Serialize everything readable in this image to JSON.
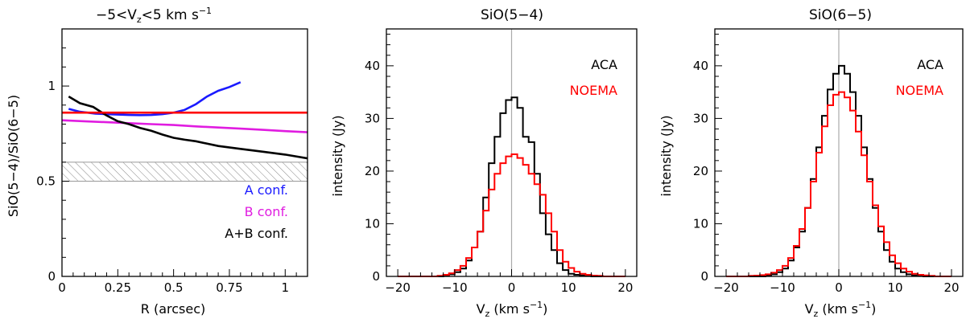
{
  "chart_data": [
    {
      "type": "line",
      "title": "−5<V",
      "title_sub": "z",
      "title_tail": "<5 km s",
      "title_sup": "−1",
      "xlabel": "R (arcsec)",
      "ylabel": "SiO(5−4)/SiO(6−5)",
      "xlim": [
        0,
        1.1
      ],
      "ylim": [
        0,
        1.3
      ],
      "xticks": [
        0,
        0.25,
        0.5,
        0.75,
        1
      ],
      "xtick_labels": [
        "0",
        "0.25",
        "0.5",
        "0.75",
        "1"
      ],
      "yticks": [
        0,
        0.5,
        1
      ],
      "ytick_labels": [
        "0",
        "0.5",
        "1"
      ],
      "series": [
        {
          "name": "A conf.",
          "color": "#1a1aff",
          "x": [
            0.03,
            0.08,
            0.15,
            0.2,
            0.25,
            0.3,
            0.35,
            0.4,
            0.45,
            0.5,
            0.55,
            0.6,
            0.65,
            0.7,
            0.75,
            0.8
          ],
          "y": [
            0.88,
            0.865,
            0.855,
            0.852,
            0.85,
            0.848,
            0.847,
            0.848,
            0.852,
            0.86,
            0.875,
            0.905,
            0.945,
            0.975,
            0.995,
            1.02
          ]
        },
        {
          "name": "B conf.",
          "color": "#e01ce0",
          "x": [
            0.0,
            0.1,
            0.2,
            0.3,
            0.4,
            0.5,
            0.6,
            0.7,
            0.8,
            0.9,
            1.0,
            1.1
          ],
          "y": [
            0.82,
            0.815,
            0.81,
            0.805,
            0.8,
            0.795,
            0.788,
            0.782,
            0.776,
            0.77,
            0.763,
            0.757
          ]
        },
        {
          "name": "A+B conf.",
          "color": "#000000",
          "x": [
            0.03,
            0.08,
            0.14,
            0.2,
            0.25,
            0.3,
            0.35,
            0.4,
            0.45,
            0.5,
            0.55,
            0.6,
            0.7,
            0.8,
            0.9,
            1.0,
            1.1
          ],
          "y": [
            0.945,
            0.91,
            0.89,
            0.845,
            0.815,
            0.8,
            0.78,
            0.765,
            0.745,
            0.728,
            0.718,
            0.71,
            0.685,
            0.67,
            0.655,
            0.64,
            0.62
          ]
        },
        {
          "name": "",
          "color": "#ff0000",
          "x": [
            0.0,
            1.1
          ],
          "y": [
            0.86,
            0.86
          ]
        }
      ],
      "band": {
        "y0": 0.5,
        "y1": 0.6,
        "color": "#999999"
      },
      "legend_position": "bottom-right"
    },
    {
      "type": "step",
      "title": "SiO(5−4)",
      "xlabel_main": "V",
      "xlabel_sub": "z",
      "xlabel_tail": " (km s",
      "xlabel_sup": "−1",
      "xlabel_end": ")",
      "ylabel": "intensity (Jy)",
      "xlim": [
        -22,
        22
      ],
      "ylim": [
        0,
        47
      ],
      "xticks": [
        -20,
        -10,
        0,
        10,
        20
      ],
      "xtick_labels": [
        "−20",
        "−10",
        "0",
        "10",
        "20"
      ],
      "yticks": [
        0,
        10,
        20,
        30,
        40
      ],
      "ytick_labels": [
        "0",
        "10",
        "20",
        "30",
        "40"
      ],
      "series": [
        {
          "name": "ACA",
          "color": "#000000",
          "x": [
            -20,
            -19,
            -18,
            -17,
            -16,
            -15,
            -14,
            -13,
            -12,
            -11,
            -10,
            -9,
            -8,
            -7,
            -6,
            -5,
            -4,
            -3,
            -2,
            -1,
            0,
            1,
            2,
            3,
            4,
            5,
            6,
            7,
            8,
            9,
            10,
            11,
            12,
            13,
            14,
            15,
            16,
            17,
            18,
            19
          ],
          "y": [
            0,
            0,
            0,
            0,
            0,
            0,
            0,
            0,
            0.2,
            0.4,
            0.8,
            1.5,
            3,
            5.5,
            8.5,
            15,
            21.5,
            26.5,
            31,
            33.5,
            34,
            32,
            26.5,
            25.5,
            19.5,
            12,
            8,
            5,
            2.5,
            1.2,
            0.5,
            0.3,
            0.2,
            0.1,
            0,
            0,
            0,
            0,
            0,
            0
          ]
        },
        {
          "name": "NOEMA",
          "color": "#ff0000",
          "x": [
            -20,
            -19,
            -18,
            -17,
            -16,
            -15,
            -14,
            -13,
            -12,
            -11,
            -10,
            -9,
            -8,
            -7,
            -6,
            -5,
            -4,
            -3,
            -2,
            -1,
            0,
            1,
            2,
            3,
            4,
            5,
            6,
            7,
            8,
            9,
            10,
            11,
            12,
            13,
            14,
            15,
            16,
            17,
            18,
            19
          ],
          "y": [
            0,
            0,
            0,
            0,
            0,
            0,
            0,
            0.1,
            0.3,
            0.6,
            1.2,
            2,
            3.5,
            5.5,
            8.5,
            12.5,
            16.5,
            19.5,
            21.5,
            22.8,
            23.2,
            22.5,
            21.2,
            19.5,
            17.5,
            15.5,
            12,
            8.5,
            5,
            2.8,
            1.6,
            0.9,
            0.5,
            0.3,
            0.15,
            0.1,
            0,
            0,
            0,
            0
          ]
        }
      ],
      "legend_position": "top-right"
    },
    {
      "type": "step",
      "title": "SiO(6−5)",
      "xlabel_main": "V",
      "xlabel_sub": "z",
      "xlabel_tail": " (km s",
      "xlabel_sup": "−1",
      "xlabel_end": ")",
      "ylabel": "intensity (Jy)",
      "xlim": [
        -22,
        22
      ],
      "ylim": [
        0,
        47
      ],
      "xticks": [
        -20,
        -10,
        0,
        10,
        20
      ],
      "xtick_labels": [
        "−20",
        "−10",
        "0",
        "10",
        "20"
      ],
      "yticks": [
        0,
        10,
        20,
        30,
        40
      ],
      "ytick_labels": [
        "0",
        "10",
        "20",
        "30",
        "40"
      ],
      "series": [
        {
          "name": "ACA",
          "color": "#000000",
          "x": [
            -20,
            -19,
            -18,
            -17,
            -16,
            -15,
            -14,
            -13,
            -12,
            -11,
            -10,
            -9,
            -8,
            -7,
            -6,
            -5,
            -4,
            -3,
            -2,
            -1,
            0,
            1,
            2,
            3,
            4,
            5,
            6,
            7,
            8,
            9,
            10,
            11,
            12,
            13,
            14,
            15,
            16,
            17,
            18,
            19
          ],
          "y": [
            0,
            0,
            0,
            0,
            0,
            0,
            0,
            0.2,
            0.4,
            0.8,
            1.5,
            3,
            5.5,
            8.5,
            13,
            18.5,
            24.5,
            30.5,
            35.5,
            38.5,
            40,
            38.5,
            35,
            30.5,
            24.5,
            18.5,
            13,
            8.5,
            5,
            2.8,
            1.5,
            0.8,
            0.4,
            0.2,
            0.1,
            0,
            0,
            0,
            0,
            0
          ]
        },
        {
          "name": "NOEMA",
          "color": "#ff0000",
          "x": [
            -20,
            -19,
            -18,
            -17,
            -16,
            -15,
            -14,
            -13,
            -12,
            -11,
            -10,
            -9,
            -8,
            -7,
            -6,
            -5,
            -4,
            -3,
            -2,
            -1,
            0,
            1,
            2,
            3,
            4,
            5,
            6,
            7,
            8,
            9,
            10,
            11,
            12,
            13,
            14,
            15,
            16,
            17,
            18,
            19
          ],
          "y": [
            0,
            0,
            0,
            0,
            0.1,
            0.15,
            0.25,
            0.4,
            0.7,
            1.2,
            2,
            3.5,
            5.8,
            9,
            13,
            18,
            23.5,
            28.5,
            32.5,
            34.5,
            35,
            34,
            31.5,
            27.5,
            23,
            18,
            13.5,
            9.5,
            6.5,
            4,
            2.5,
            1.5,
            0.9,
            0.5,
            0.3,
            0.2,
            0.1,
            0,
            0,
            0
          ]
        }
      ],
      "legend_position": "top-right"
    }
  ]
}
